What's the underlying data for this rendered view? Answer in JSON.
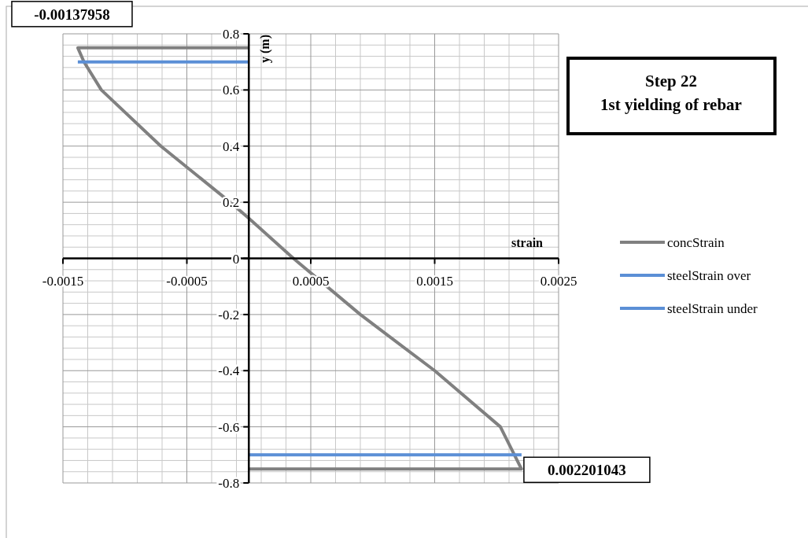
{
  "chart_data": {
    "type": "line",
    "title": "Step 22\n1st yielding of rebar",
    "xlabel": "strain",
    "ylabel": "y (m)",
    "series": [
      {
        "name": "concStrain",
        "color": "#808080",
        "x": [
          0,
          -0.00137958,
          -0.00133,
          -0.00119,
          -0.00071,
          -0.00015,
          0,
          0.00036,
          0.0009,
          0.0015,
          0.00203,
          0.0022,
          0
        ],
        "values": [
          0.75,
          0.75,
          0.7,
          0.6,
          0.4,
          0.2,
          0.143,
          0,
          -0.2,
          -0.4,
          -0.6,
          -0.75,
          -0.75
        ]
      },
      {
        "name": "steelStrain over",
        "color": "#5b8fd6",
        "x": [
          -0.00138,
          0
        ],
        "values": [
          0.7,
          0.7
        ]
      },
      {
        "name": "steelStrain under",
        "color": "#5b8fd6",
        "x": [
          0,
          0.002201043
        ],
        "values": [
          -0.7,
          -0.7
        ]
      }
    ],
    "annotations": [
      {
        "text": "-0.00137958",
        "x": -0.00137958,
        "y": 0.75
      },
      {
        "text": "0.002201043",
        "x": 0.002201043,
        "y": -0.7
      }
    ],
    "xlim": [
      -0.0015,
      0.0025
    ],
    "xticks": [
      -0.0015,
      -0.0005,
      0.0005,
      0.0015,
      0.0025
    ],
    "ylim": [
      -0.8,
      0.8
    ],
    "yticks": [
      -0.8,
      -0.6,
      -0.4,
      -0.2,
      0,
      0.2,
      0.4,
      0.6,
      0.8
    ],
    "grid": true,
    "legend": "right",
    "marker": "none",
    "line_style": "solid"
  }
}
